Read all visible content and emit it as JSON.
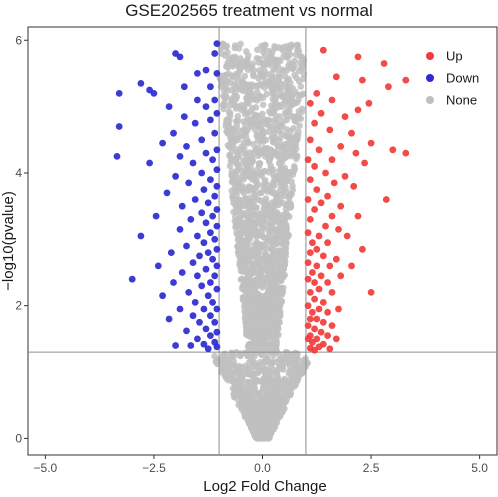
{
  "chart_data": {
    "type": "scatter",
    "title": "GSE202565 treatment vs normal",
    "xlabel": "Log2 Fold Change",
    "ylabel": "−log10(pvalue)",
    "xlim": [
      -5.4,
      5.4
    ],
    "ylim": [
      -0.25,
      6.2
    ],
    "xticks": [
      -5.0,
      -2.5,
      0.0,
      2.5,
      5.0
    ],
    "xtick_labels": [
      "−5.0",
      "−2.5",
      "0.0",
      "2.5",
      "5.0"
    ],
    "yticks": [
      0,
      2,
      4,
      6
    ],
    "ytick_labels": [
      "0",
      "2",
      "4",
      "6"
    ],
    "grid": false,
    "legend_position": "top-right",
    "thresholds": {
      "vlines": [
        -1,
        1
      ],
      "hline": 1.3
    },
    "colors": {
      "Up": "#f23b3b",
      "Down": "#2b2bd0",
      "None": "#c0c0c0"
    },
    "series": [
      {
        "name": "Up",
        "points": [
          [
            1.4,
            5.85
          ],
          [
            2.2,
            5.75
          ],
          [
            2.8,
            5.65
          ],
          [
            1.7,
            5.45
          ],
          [
            2.3,
            5.4
          ],
          [
            3.3,
            5.4
          ],
          [
            2.9,
            5.3
          ],
          [
            1.25,
            5.2
          ],
          [
            1.6,
            5.1
          ],
          [
            1.1,
            5.05
          ],
          [
            2.45,
            5.05
          ],
          [
            2.2,
            4.95
          ],
          [
            1.35,
            4.9
          ],
          [
            1.9,
            4.85
          ],
          [
            1.2,
            4.75
          ],
          [
            1.55,
            4.65
          ],
          [
            2.05,
            4.6
          ],
          [
            1.1,
            4.5
          ],
          [
            2.5,
            4.45
          ],
          [
            1.8,
            4.4
          ],
          [
            1.3,
            4.35
          ],
          [
            2.15,
            4.3
          ],
          [
            3.0,
            4.35
          ],
          [
            3.3,
            4.3
          ],
          [
            1.05,
            4.2
          ],
          [
            1.6,
            4.2
          ],
          [
            2.35,
            4.15
          ],
          [
            1.2,
            4.1
          ],
          [
            1.45,
            4.0
          ],
          [
            1.9,
            3.95
          ],
          [
            1.1,
            3.9
          ],
          [
            1.65,
            3.85
          ],
          [
            2.1,
            3.8
          ],
          [
            1.25,
            3.75
          ],
          [
            1.5,
            3.65
          ],
          [
            1.05,
            3.6
          ],
          [
            2.85,
            3.6
          ],
          [
            1.35,
            3.55
          ],
          [
            1.8,
            3.5
          ],
          [
            1.2,
            3.45
          ],
          [
            1.6,
            3.35
          ],
          [
            2.2,
            3.35
          ],
          [
            1.1,
            3.3
          ],
          [
            1.45,
            3.2
          ],
          [
            1.75,
            3.15
          ],
          [
            1.05,
            3.1
          ],
          [
            1.3,
            3.05
          ],
          [
            1.95,
            3.05
          ],
          [
            1.15,
            2.95
          ],
          [
            1.5,
            2.95
          ],
          [
            1.25,
            2.85
          ],
          [
            2.3,
            2.85
          ],
          [
            1.1,
            2.8
          ],
          [
            1.4,
            2.75
          ],
          [
            1.7,
            2.7
          ],
          [
            1.05,
            2.65
          ],
          [
            1.25,
            2.6
          ],
          [
            1.55,
            2.6
          ],
          [
            2.05,
            2.6
          ],
          [
            1.15,
            2.5
          ],
          [
            1.35,
            2.45
          ],
          [
            1.8,
            2.45
          ],
          [
            1.05,
            2.4
          ],
          [
            1.2,
            2.35
          ],
          [
            1.5,
            2.35
          ],
          [
            1.3,
            2.25
          ],
          [
            1.1,
            2.2
          ],
          [
            1.6,
            2.2
          ],
          [
            2.5,
            2.2
          ],
          [
            1.2,
            2.1
          ],
          [
            1.4,
            2.05
          ],
          [
            1.05,
            2.0
          ],
          [
            1.3,
            1.95
          ],
          [
            1.75,
            1.95
          ],
          [
            1.15,
            1.9
          ],
          [
            1.5,
            1.9
          ],
          [
            1.1,
            1.8
          ],
          [
            1.25,
            1.8
          ],
          [
            1.4,
            1.75
          ],
          [
            1.6,
            1.7
          ],
          [
            1.05,
            1.7
          ],
          [
            1.2,
            1.65
          ],
          [
            1.35,
            1.6
          ],
          [
            1.1,
            1.55
          ],
          [
            1.5,
            1.55
          ],
          [
            1.25,
            1.5
          ],
          [
            1.05,
            1.5
          ],
          [
            1.7,
            1.5
          ],
          [
            1.15,
            1.45
          ],
          [
            1.4,
            1.42
          ],
          [
            1.3,
            1.38
          ],
          [
            1.1,
            1.36
          ],
          [
            1.55,
            1.35
          ],
          [
            1.2,
            1.33
          ]
        ]
      },
      {
        "name": "Down",
        "points": [
          [
            -1.05,
            5.95
          ],
          [
            -1.1,
            5.8
          ],
          [
            -2.0,
            5.8
          ],
          [
            -1.9,
            5.75
          ],
          [
            -1.3,
            5.55
          ],
          [
            -1.05,
            5.5
          ],
          [
            -1.5,
            5.5
          ],
          [
            -2.8,
            5.35
          ],
          [
            -1.8,
            5.3
          ],
          [
            -1.2,
            5.3
          ],
          [
            -3.3,
            5.2
          ],
          [
            -2.6,
            5.25
          ],
          [
            -2.5,
            5.2
          ],
          [
            -1.1,
            5.1
          ],
          [
            -1.5,
            5.1
          ],
          [
            -2.15,
            5.0
          ],
          [
            -1.3,
            5.0
          ],
          [
            -1.05,
            4.9
          ],
          [
            -1.8,
            4.85
          ],
          [
            -1.2,
            4.8
          ],
          [
            -1.55,
            4.75
          ],
          [
            -3.3,
            4.7
          ],
          [
            -2.05,
            4.6
          ],
          [
            -1.1,
            4.6
          ],
          [
            -1.4,
            4.5
          ],
          [
            -2.3,
            4.45
          ],
          [
            -1.75,
            4.4
          ],
          [
            -1.05,
            4.35
          ],
          [
            -1.3,
            4.3
          ],
          [
            -1.9,
            4.25
          ],
          [
            -3.35,
            4.25
          ],
          [
            -1.15,
            4.2
          ],
          [
            -1.6,
            4.15
          ],
          [
            -2.6,
            4.15
          ],
          [
            -1.05,
            4.05
          ],
          [
            -1.4,
            4.0
          ],
          [
            -2.0,
            3.95
          ],
          [
            -1.2,
            3.9
          ],
          [
            -1.7,
            3.85
          ],
          [
            -1.05,
            3.8
          ],
          [
            -1.35,
            3.75
          ],
          [
            -2.2,
            3.7
          ],
          [
            -1.1,
            3.65
          ],
          [
            -1.55,
            3.6
          ],
          [
            -1.25,
            3.55
          ],
          [
            -1.85,
            3.5
          ],
          [
            -1.05,
            3.45
          ],
          [
            -1.4,
            3.4
          ],
          [
            -2.45,
            3.35
          ],
          [
            -1.15,
            3.35
          ],
          [
            -1.65,
            3.3
          ],
          [
            -1.3,
            3.25
          ],
          [
            -1.05,
            3.2
          ],
          [
            -1.9,
            3.15
          ],
          [
            -1.2,
            3.1
          ],
          [
            -1.5,
            3.05
          ],
          [
            -2.8,
            3.05
          ],
          [
            -1.1,
            3.0
          ],
          [
            -1.35,
            2.95
          ],
          [
            -1.75,
            2.9
          ],
          [
            -1.05,
            2.85
          ],
          [
            -1.25,
            2.8
          ],
          [
            -2.1,
            2.8
          ],
          [
            -1.45,
            2.75
          ],
          [
            -1.15,
            2.7
          ],
          [
            -1.6,
            2.65
          ],
          [
            -1.05,
            2.6
          ],
          [
            -2.4,
            2.6
          ],
          [
            -1.3,
            2.55
          ],
          [
            -1.85,
            2.5
          ],
          [
            -1.1,
            2.45
          ],
          [
            -1.5,
            2.45
          ],
          [
            -1.2,
            2.35
          ],
          [
            -2.05,
            2.35
          ],
          [
            -1.4,
            2.3
          ],
          [
            -1.05,
            2.25
          ],
          [
            -1.7,
            2.2
          ],
          [
            -1.25,
            2.15
          ],
          [
            -2.3,
            2.15
          ],
          [
            -1.15,
            2.05
          ],
          [
            -1.55,
            2.05
          ],
          [
            -1.35,
            1.95
          ],
          [
            -1.05,
            1.95
          ],
          [
            -1.9,
            1.95
          ],
          [
            -1.2,
            1.85
          ],
          [
            -1.6,
            1.85
          ],
          [
            -3.0,
            2.4
          ],
          [
            -1.1,
            1.75
          ],
          [
            -1.45,
            1.75
          ],
          [
            -2.15,
            1.8
          ],
          [
            -1.3,
            1.65
          ],
          [
            -1.05,
            1.6
          ],
          [
            -1.75,
            1.62
          ],
          [
            -1.2,
            1.55
          ],
          [
            -1.5,
            1.5
          ],
          [
            -1.1,
            1.45
          ],
          [
            -1.35,
            1.42
          ],
          [
            -1.65,
            1.4
          ],
          [
            -1.05,
            1.38
          ],
          [
            -1.25,
            1.35
          ],
          [
            -2.0,
            1.4
          ]
        ]
      },
      {
        "name": "None",
        "points": []
      }
    ]
  },
  "legend": {
    "items": [
      {
        "label": "Up",
        "color": "#f23b3b"
      },
      {
        "label": "Down",
        "color": "#2b2bd0"
      },
      {
        "label": "None",
        "color": "#c0c0c0"
      }
    ]
  }
}
